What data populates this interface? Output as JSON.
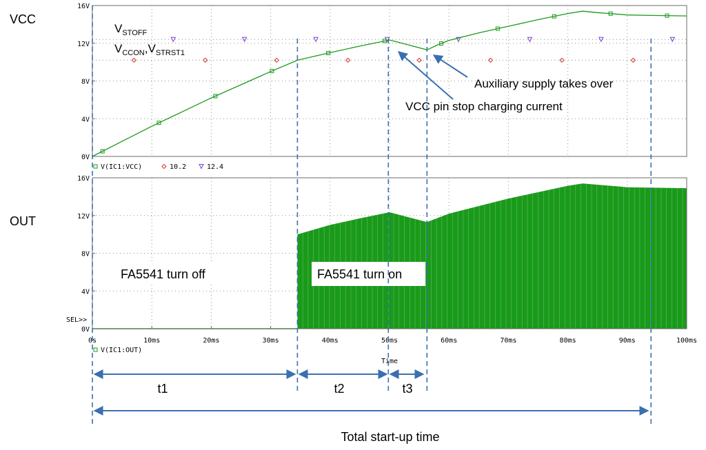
{
  "colors": {
    "trace": "#1a9a1a",
    "frame": "#6a6a6a",
    "grid": "#909090",
    "marker_10": "#d03a3a",
    "marker_12": "#7a3fd0",
    "annotation": "#3a6fb0",
    "text": "#000000"
  },
  "chart_data": [
    {
      "type": "line",
      "panel_label": "VCC",
      "ylim": [
        0,
        16
      ],
      "xlim": [
        0,
        100
      ],
      "y_ticks": [
        "0V",
        "4V",
        "8V",
        "12V",
        "16V"
      ],
      "legend": [
        {
          "label": "V(IC1:VCC)",
          "marker": "square-icon"
        },
        {
          "label": "10.2",
          "marker": "diamond-icon"
        },
        {
          "label": "12.4",
          "marker": "triangle-icon"
        }
      ],
      "series": [
        {
          "name": "V(IC1:VCC)",
          "x": [
            0,
            5,
            10,
            15,
            20,
            25,
            30,
            34.5,
            40,
            45,
            50,
            53,
            56.3,
            58,
            60,
            65,
            70,
            75,
            80,
            82.5,
            85,
            90,
            94,
            100
          ],
          "y": [
            0,
            1.6,
            3.2,
            4.7,
            6.2,
            7.6,
            9.0,
            10.2,
            11.0,
            11.7,
            12.35,
            11.85,
            11.3,
            11.8,
            12.3,
            13.1,
            13.8,
            14.5,
            15.15,
            15.4,
            15.25,
            15.0,
            14.95,
            14.9
          ]
        },
        {
          "name": "10.2",
          "y_const": 10.2
        },
        {
          "name": "12.4",
          "y_const": 12.4
        }
      ]
    },
    {
      "type": "area",
      "panel_label": "OUT",
      "ylim": [
        0,
        16
      ],
      "xlim": [
        0,
        100
      ],
      "y_ticks": [
        "0V",
        "4V",
        "8V",
        "12V",
        "16V"
      ],
      "x_ticks": [
        "0s",
        "10ms",
        "20ms",
        "30ms",
        "40ms",
        "50ms",
        "60ms",
        "70ms",
        "80ms",
        "90ms",
        "100ms"
      ],
      "x_title": "Time",
      "sel_label": "SEL>>",
      "legend": [
        {
          "label": "V(IC1:OUT)",
          "marker": "square-icon"
        }
      ],
      "series": [
        {
          "name": "V(IC1:OUT)",
          "envelope_x": [
            0,
            34.5,
            34.5,
            40,
            45,
            50,
            56.3,
            60,
            70,
            80,
            82.5,
            90,
            100
          ],
          "envelope_y": [
            0,
            0,
            10.0,
            11.0,
            11.7,
            12.35,
            11.3,
            12.2,
            13.8,
            15.15,
            15.4,
            15.0,
            14.9
          ]
        }
      ]
    }
  ],
  "labels": {
    "vstoff_main": "V",
    "vstoff_sub": "STOFF",
    "vccon_main": "V",
    "vccon_sub": "CCON",
    "vccon_comma": ",",
    "vstrst_main": "V",
    "vstrst_sub": "STRST1",
    "auxiliary": "Auxiliary supply takes over",
    "vcc_pin": "VCC pin stop charging current",
    "turn_off": "FA5541 turn off",
    "turn_on": "FA5541 turn on",
    "t1": "t1",
    "t2": "t2",
    "t3": "t3",
    "total": "Total start-up time"
  },
  "phase_bounds_ms": [
    0,
    34.5,
    49.8,
    56.3,
    94
  ]
}
